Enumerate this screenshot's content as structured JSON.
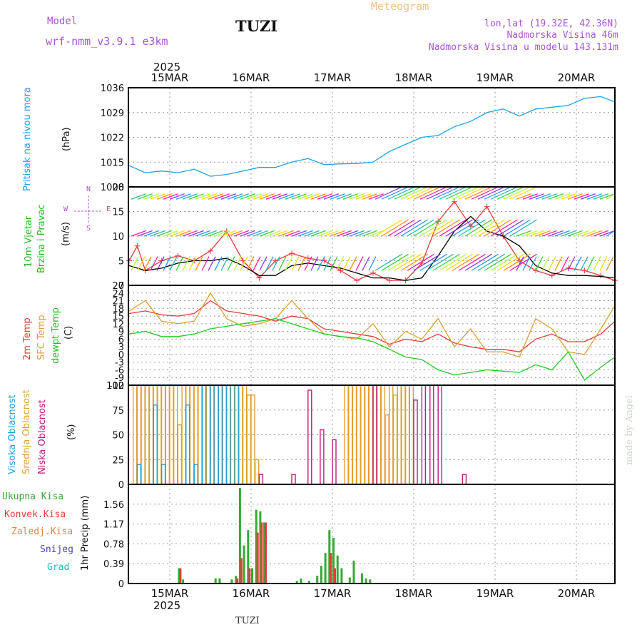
{
  "header": {
    "model_label": "Model",
    "model_name": "wrf-nmm_v3.9.1 e3km",
    "station": "TUZI",
    "product": "Meteogram",
    "lonlat": "lon,lat (19.32E, 42.36N)",
    "altitude": "Nadmorska Visina 46m",
    "model_altitude": "Nadmorska Visina u modelu 143.131m",
    "footer_station": "TUZI",
    "credit": "made by Angel",
    "year_label": "2025"
  },
  "colors": {
    "pressure": "#1aa3e8",
    "speed": "#e83a3a",
    "speed_mean": "#000000",
    "temp2m": "#e83a3a",
    "sfc_temp": "#e0a030",
    "dewpt": "#22cc22",
    "cloud_high": "#20a0e0",
    "cloud_mid": "#e0a030",
    "cloud_low": "#c01a7a",
    "precip_total": "#33aa33",
    "precip_conv": "#e83a3a",
    "label_purple": "#a855d8",
    "label_orange": "#f0c080"
  },
  "chart_data": [
    {
      "type": "line",
      "panel": "pressure",
      "title": "Pritisak na nivou mora",
      "ylabel": "(hPa)",
      "x_tick_labels": [
        "15MAR",
        "16MAR",
        "17MAR",
        "18MAR",
        "19MAR",
        "20MAR"
      ],
      "ylim": [
        1008,
        1036
      ],
      "yticks": [
        1008,
        1015,
        1022,
        1029,
        1036
      ],
      "ytick_labels": [
        "1008",
        "1015",
        "1022",
        "1029",
        "1036"
      ],
      "series": [
        {
          "name": "Pritisak",
          "x": [
            0,
            0.2,
            0.4,
            0.6,
            0.8,
            1,
            1.2,
            1.4,
            1.6,
            1.8,
            2,
            2.2,
            2.4,
            2.6,
            2.8,
            3,
            3.2,
            3.4,
            3.6,
            3.8,
            4,
            4.2,
            4.4,
            4.6,
            4.8,
            5,
            5.2,
            5.4,
            5.6,
            5.8,
            6
          ],
          "values": [
            1014,
            1012,
            1012.5,
            1012,
            1013,
            1011,
            1011.5,
            1012.5,
            1013.5,
            1013.5,
            1015,
            1016,
            1014.3,
            1014.5,
            1014.6,
            1015,
            1018,
            1020,
            1022,
            1022.5,
            1025,
            1026.5,
            1029,
            1030,
            1028,
            1030,
            1030.5,
            1031,
            1033,
            1033.5,
            1032
          ]
        }
      ]
    },
    {
      "type": "line",
      "panel": "wind",
      "title": "10m Vjetar",
      "subtitle": "Brzina i Pravac",
      "ylabel": "(m/s)",
      "compass_labels": [
        "N",
        "E",
        "S",
        "W"
      ],
      "ylim": [
        0,
        20
      ],
      "yticks": [
        0,
        5,
        10,
        15,
        20
      ],
      "ytick_labels": [
        "0",
        "5",
        "10",
        "15",
        "20"
      ],
      "series": [
        {
          "name": "Brzina",
          "x": [
            0,
            0.1,
            0.2,
            0.4,
            0.6,
            0.8,
            1,
            1.2,
            1.4,
            1.6,
            1.8,
            2,
            2.2,
            2.4,
            2.6,
            2.8,
            3,
            3.2,
            3.4,
            3.6,
            3.8,
            4,
            4.2,
            4.4,
            4.6,
            4.8,
            5,
            5.2,
            5.4,
            5.6,
            5.8,
            6
          ],
          "values": [
            5,
            8,
            3,
            5,
            6,
            5,
            7,
            11,
            5,
            1.5,
            5,
            6.5,
            5.5,
            5,
            3,
            1,
            2.5,
            1,
            1,
            4.5,
            13,
            17,
            12,
            16,
            10,
            5,
            3,
            2,
            3.5,
            3,
            2,
            1
          ]
        },
        {
          "name": "Prosjek",
          "x": [
            0,
            0.2,
            0.4,
            0.6,
            0.8,
            1,
            1.2,
            1.4,
            1.6,
            1.8,
            2,
            2.2,
            2.4,
            2.6,
            2.8,
            3,
            3.2,
            3.4,
            3.6,
            3.8,
            4,
            4.2,
            4.4,
            4.6,
            4.8,
            5,
            5.2,
            5.4,
            5.6,
            5.8,
            6
          ],
          "values": [
            4,
            3,
            3.5,
            4.5,
            5,
            5,
            5.5,
            4,
            2,
            2,
            4,
            4.5,
            4,
            3.5,
            2.5,
            1.5,
            1.5,
            1,
            1.5,
            6,
            11,
            14,
            11,
            10,
            8,
            4,
            2.5,
            2,
            2,
            1.8,
            1.5
          ]
        }
      ],
      "arrow_rows": [
        3,
        10,
        17.5
      ]
    },
    {
      "type": "line",
      "panel": "temperature",
      "title": "2m Temp",
      "subtitle": "SFC Temp",
      "subtitle2": "dewpt Temp",
      "ylabel": "(C)",
      "ylim": [
        -12,
        27
      ],
      "yticks": [
        -12,
        -9,
        -6,
        -3,
        0,
        3,
        6,
        9,
        12,
        15,
        18,
        21,
        24,
        27
      ],
      "ytick_labels": [
        "-12",
        "-9",
        "-6",
        "-3",
        "0",
        "3",
        "6",
        "9",
        "12",
        "15",
        "18",
        "21",
        "24",
        "27"
      ],
      "series": [
        {
          "name": "2m Temp",
          "x": [
            0,
            0.2,
            0.4,
            0.6,
            0.8,
            1,
            1.2,
            1.4,
            1.6,
            1.8,
            2,
            2.2,
            2.4,
            2.6,
            2.8,
            3,
            3.2,
            3.4,
            3.6,
            3.8,
            4,
            4.2,
            4.4,
            4.6,
            4.8,
            5,
            5.2,
            5.4,
            5.6,
            5.8,
            6
          ],
          "values": [
            16,
            17,
            15.5,
            15,
            16,
            21,
            17,
            16,
            15,
            13,
            15,
            14,
            10,
            9,
            8,
            7,
            4,
            6,
            5,
            8,
            4.5,
            3,
            2,
            2,
            1,
            6,
            8,
            5,
            5,
            8,
            13
          ]
        },
        {
          "name": "SFC Temp",
          "x": [
            0,
            0.2,
            0.4,
            0.6,
            0.8,
            1,
            1.2,
            1.4,
            1.6,
            1.8,
            2,
            2.2,
            2.4,
            2.6,
            2.8,
            3,
            3.2,
            3.4,
            3.6,
            3.8,
            4,
            4.2,
            4.4,
            4.6,
            4.8,
            5,
            5.2,
            5.4,
            5.6,
            5.8,
            6
          ],
          "values": [
            17,
            21,
            13,
            12,
            13,
            24,
            14,
            11,
            12,
            14,
            21,
            14,
            8,
            7,
            6,
            12,
            3,
            9,
            6,
            14,
            3,
            10,
            1,
            1,
            -1,
            14,
            10,
            1,
            0,
            10,
            19
          ]
        },
        {
          "name": "dewpt Temp",
          "x": [
            0,
            0.2,
            0.4,
            0.6,
            0.8,
            1,
            1.2,
            1.4,
            1.6,
            1.8,
            2,
            2.2,
            2.4,
            2.6,
            2.8,
            3,
            3.2,
            3.4,
            3.6,
            3.8,
            4,
            4.2,
            4.4,
            4.6,
            4.8,
            5,
            5.2,
            5.4,
            5.6,
            5.8,
            6
          ],
          "values": [
            8,
            9,
            7,
            7,
            8,
            10,
            11,
            12,
            13,
            14,
            12,
            10,
            8,
            7,
            6.5,
            5,
            2,
            -1,
            -2,
            -6,
            -8,
            -7,
            -6,
            -6.5,
            -7,
            -4,
            -6,
            1,
            -10,
            -5,
            -1
          ]
        }
      ]
    },
    {
      "type": "bar",
      "panel": "cloud",
      "title": "Visoka Oblacnost",
      "subtitle": "Srednja Oblacnost",
      "subtitle2": "Niska Oblacnost",
      "ylabel": "(%)",
      "ylim": [
        0,
        100
      ],
      "yticks": [
        0,
        25,
        50,
        75,
        100
      ],
      "ytick_labels": [
        "0",
        "25",
        "50",
        "75",
        "100"
      ],
      "series": [
        {
          "name": "Srednja",
          "x": [
            0.05,
            0.1,
            0.15,
            0.2,
            0.25,
            0.3,
            0.35,
            0.4,
            0.45,
            0.5,
            0.55,
            0.6,
            0.65,
            0.7,
            0.75,
            0.8,
            0.85,
            0.9,
            0.95,
            1,
            1.05,
            1.1,
            1.15,
            1.2,
            1.25,
            1.3,
            1.35,
            1.4,
            1.45,
            1.5,
            1.55,
            2.65,
            2.7,
            2.75,
            2.8,
            2.85,
            2.9,
            2.95,
            3,
            3.05,
            3.1,
            3.15,
            3.2,
            3.25,
            3.3,
            3.35,
            3.4,
            3.45
          ],
          "values": [
            100,
            100,
            100,
            100,
            100,
            100,
            100,
            100,
            100,
            100,
            100,
            60,
            100,
            100,
            100,
            100,
            100,
            100,
            100,
            100,
            100,
            100,
            100,
            100,
            100,
            100,
            100,
            100,
            90,
            90,
            25,
            100,
            100,
            100,
            100,
            100,
            100,
            100,
            100,
            100,
            100,
            70,
            100,
            90,
            100,
            100,
            100,
            100
          ]
        },
        {
          "name": "Visoka",
          "x": [
            0.1,
            0.3,
            0.4,
            0.7,
            0.8,
            0.9,
            1,
            1.1,
            1.2,
            1.3
          ],
          "values": [
            20,
            80,
            20,
            80,
            20,
            100,
            100,
            100,
            100,
            100
          ]
        },
        {
          "name": "Niska",
          "x": [
            1.6,
            2,
            2.2,
            2.35,
            2.5,
            3,
            3.5,
            3.6,
            3.7,
            3.8,
            4.1
          ],
          "values": [
            10,
            10,
            95,
            55,
            45,
            100,
            85,
            100,
            100,
            100,
            10
          ]
        }
      ]
    },
    {
      "type": "bar",
      "panel": "precip",
      "legend": [
        "Ukupna Kisa",
        "Konvek.Kisa",
        "Zaledj.Kisa",
        "Snijeg",
        "Grad"
      ],
      "ylabel": "1hr Precip (mm)",
      "x_tick_labels": [
        "15MAR",
        "16MAR",
        "17MAR",
        "18MAR",
        "19MAR",
        "20MAR"
      ],
      "ylim": [
        0,
        1.95
      ],
      "yticks": [
        0,
        0.39,
        0.78,
        1.17,
        1.56
      ],
      "ytick_labels": [
        "0",
        "0.39",
        "0.78",
        "1.17",
        "1.56"
      ],
      "series": [
        {
          "name": "Ukupna Kisa",
          "x": [
            0.6,
            0.65,
            1.05,
            1.1,
            1.25,
            1.3,
            1.35,
            1.4,
            1.45,
            1.5,
            1.55,
            1.6,
            1.65,
            2.05,
            2.1,
            2.2,
            2.3,
            2.35,
            2.4,
            2.45,
            2.5,
            2.55,
            2.6,
            2.7,
            2.75,
            2.85,
            2.9,
            2.95
          ],
          "values": [
            0.3,
            0.08,
            0.1,
            0.1,
            0.08,
            0.15,
            1.88,
            0.75,
            1.05,
            0.3,
            1.45,
            1.42,
            1.2,
            0.05,
            0.1,
            0.05,
            0.15,
            0.35,
            0.6,
            1.05,
            0.9,
            0.55,
            0.3,
            0.12,
            0.45,
            0.2,
            0.1,
            0.08
          ]
        },
        {
          "name": "Konvek.Kisa",
          "x": [
            0.6,
            1.3,
            1.35,
            1.45,
            1.55,
            1.6,
            1.65,
            2.45,
            2.5
          ],
          "values": [
            0.3,
            0.1,
            0.5,
            0.3,
            1.0,
            1.2,
            1.2,
            0.6,
            0.3
          ]
        }
      ]
    }
  ]
}
